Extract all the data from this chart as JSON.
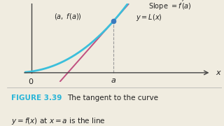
{
  "bg_color": "#f0ece0",
  "curve_color": "#3bbfdb",
  "line_color": "#c05080",
  "point_color": "#3a7bbf",
  "axis_color": "#444444",
  "text_color": "#222222",
  "figure_label_color": "#2ab5d8",
  "a_val": 1.3,
  "x_min": -0.15,
  "x_max": 2.8,
  "y_min": -0.4,
  "y_max": 3.0,
  "figsize": [
    3.2,
    1.8
  ],
  "dpi": 100
}
